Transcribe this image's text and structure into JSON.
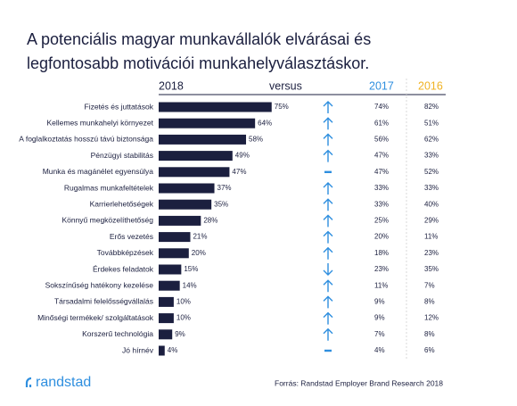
{
  "chart_data": {
    "type": "bar",
    "title": "A potenciális magyar munkavállalók elvárásai és legfontosabb motivációi munkahelyválasztáskor.",
    "versus": "versus",
    "source": "Forrás: Randstad Employer Brand Research 2018",
    "brand": "randstad",
    "categories": [
      "Fizetés és juttatások",
      "Kellemes munkahelyi környezet",
      "A foglalkoztatás hosszú távú biztonsága",
      "Pénzügyi stabilitás",
      "Munka és magánélet egyensúlya",
      "Rugalmas munkafeltételek",
      "Karrierlehetőségek",
      "Könnyű megközelíthetőség",
      "Erős vezetés",
      "Továbbképzések",
      "Érdekes feladatok",
      "Sokszínűség hatékony kezelése",
      "Társadalmi felelősségvállalás",
      "Minőségi termékek/ szolgáltatások",
      "Korszerű technológia",
      "Jó hírnév"
    ],
    "series": [
      {
        "name": "2018",
        "color": "#1b1f3f",
        "values": [
          75,
          64,
          58,
          49,
          47,
          37,
          35,
          28,
          21,
          20,
          15,
          14,
          10,
          10,
          9,
          4
        ],
        "value_labels": [
          "75%",
          "64%",
          "58%",
          "49%",
          "47%",
          "37%",
          "35%",
          "28%",
          "21%",
          "20%",
          "15%",
          "14%",
          "10%",
          "10%",
          "9%",
          "4%"
        ]
      },
      {
        "name": "2017",
        "color": "#2f8fdf",
        "values": [
          74,
          61,
          56,
          47,
          47,
          33,
          33,
          25,
          20,
          18,
          23,
          11,
          9,
          9,
          7,
          4
        ],
        "value_labels": [
          "74%",
          "61%",
          "56%",
          "47%",
          "47%",
          "33%",
          "33%",
          "25%",
          "20%",
          "18%",
          "23%",
          "11%",
          "9%",
          "9%",
          "7%",
          "4%"
        ]
      },
      {
        "name": "2016",
        "color": "#f0b323",
        "values": [
          82,
          51,
          62,
          33,
          52,
          33,
          40,
          29,
          11,
          23,
          35,
          7,
          8,
          12,
          8,
          6
        ],
        "value_labels": [
          "82%",
          "51%",
          "62%",
          "33%",
          "52%",
          "33%",
          "40%",
          "29%",
          "11%",
          "23%",
          "35%",
          "7%",
          "8%",
          "12%",
          "8%",
          "6%"
        ]
      }
    ],
    "xlim": [
      0,
      100
    ]
  }
}
